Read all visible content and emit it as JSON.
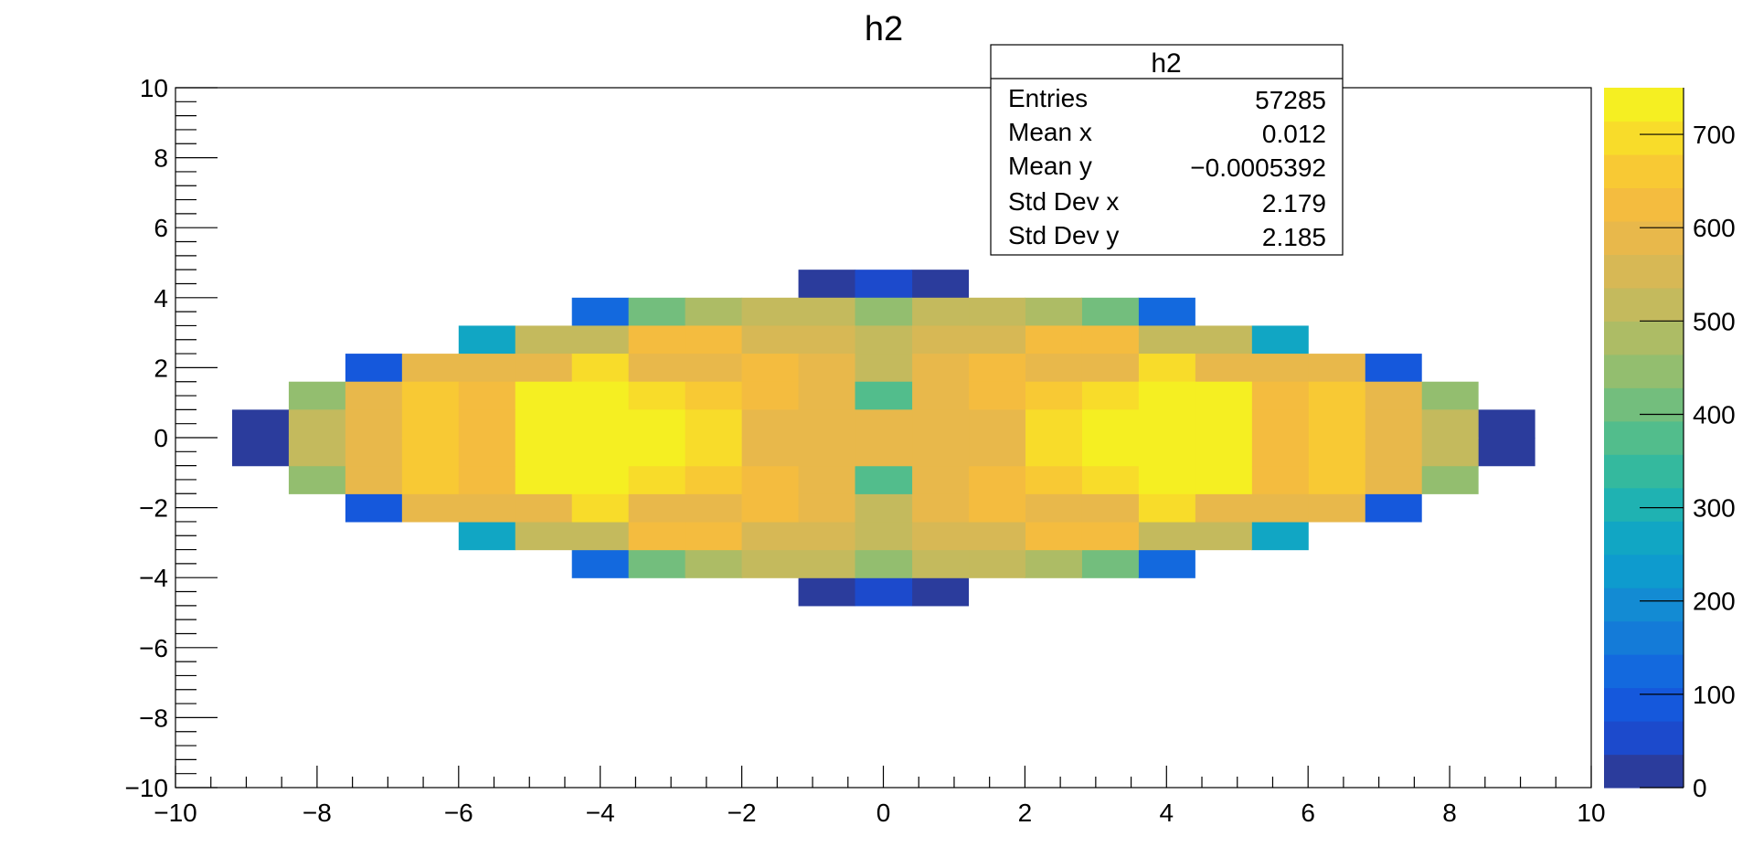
{
  "title": "h2",
  "stats_box": {
    "title": "h2",
    "rows": [
      {
        "label": "Entries",
        "value": "57285"
      },
      {
        "label": "Mean x",
        "value": "0.012"
      },
      {
        "label": "Mean y",
        "value": "−0.0005392"
      },
      {
        "label": "Std Dev x",
        "value": "2.179"
      },
      {
        "label": "Std Dev y",
        "value": "2.185"
      }
    ]
  },
  "chart_data": {
    "type": "heatmap",
    "title": "h2",
    "xlim": [
      -10,
      10
    ],
    "ylim": [
      -10,
      10
    ],
    "x_ticks": [
      "−10",
      "−8",
      "−6",
      "−4",
      "−2",
      "0",
      "2",
      "4",
      "6",
      "8",
      "10"
    ],
    "y_ticks": [
      "−10",
      "−8",
      "−6",
      "−4",
      "−2",
      "0",
      "2",
      "4",
      "6",
      "8",
      "10"
    ],
    "x_tick_values": [
      -10,
      -8,
      -6,
      -4,
      -2,
      0,
      2,
      4,
      6,
      8,
      10
    ],
    "y_tick_values": [
      -10,
      -8,
      -6,
      -4,
      -2,
      0,
      2,
      4,
      6,
      8,
      10
    ],
    "bins_x": 25,
    "bins_y": 25,
    "bin_width": 0.8,
    "z_range": [
      0,
      750
    ],
    "z_ticks": [
      "0",
      "100",
      "200",
      "300",
      "400",
      "500",
      "600",
      "700"
    ],
    "z_tick_values": [
      0,
      100,
      200,
      300,
      400,
      500,
      600,
      700
    ],
    "palette": [
      "#2b3c9c",
      "#1c4acc",
      "#1558dc",
      "#1369de",
      "#147bd8",
      "#138bd3",
      "#0e9bce",
      "#11a6c4",
      "#1fb2b2",
      "#34b99e",
      "#52bd8c",
      "#73be7d",
      "#93be6f",
      "#adbc65",
      "#c4ba5d",
      "#d7b855",
      "#e8b84b",
      "#f4bc3f",
      "#f8c934",
      "#f8dc2a",
      "#f5ef22"
    ],
    "grid": false,
    "legend": "color-scale-right",
    "cells": [
      {
        "x": -0.8,
        "y": 4.4,
        "z": 25
      },
      {
        "x": 0.0,
        "y": 4.4,
        "z": 70
      },
      {
        "x": 0.8,
        "y": 4.4,
        "z": 25
      },
      {
        "x": -4.0,
        "y": 3.6,
        "z": 110
      },
      {
        "x": -3.2,
        "y": 3.6,
        "z": 400
      },
      {
        "x": -2.4,
        "y": 3.6,
        "z": 470
      },
      {
        "x": -1.6,
        "y": 3.6,
        "z": 520
      },
      {
        "x": -0.8,
        "y": 3.6,
        "z": 520
      },
      {
        "x": 0.0,
        "y": 3.6,
        "z": 450
      },
      {
        "x": 0.8,
        "y": 3.6,
        "z": 110
      },
      {
        "x": -5.6,
        "y": 2.8,
        "z": 250
      },
      {
        "x": -4.8,
        "y": 2.8,
        "z": 530
      },
      {
        "x": -4.0,
        "y": 2.8,
        "z": 530
      },
      {
        "x": -3.2,
        "y": 2.8,
        "z": 610
      },
      {
        "x": -2.4,
        "y": 2.8,
        "z": 610
      },
      {
        "x": -1.6,
        "y": 2.8,
        "z": 570
      },
      {
        "x": -0.8,
        "y": 2.8,
        "z": 570
      },
      {
        "x": 0.0,
        "y": 2.8,
        "z": 530
      },
      {
        "x": 0.8,
        "y": 2.8,
        "z": 250
      },
      {
        "x": -7.2,
        "y": 2.0,
        "z": 90
      },
      {
        "x": -6.4,
        "y": 2.0,
        "z": 580
      },
      {
        "x": -5.6,
        "y": 2.0,
        "z": 580
      },
      {
        "x": -4.8,
        "y": 2.0,
        "z": 580
      },
      {
        "x": -4.0,
        "y": 2.0,
        "z": 690
      },
      {
        "x": -3.2,
        "y": 2.0,
        "z": 600
      },
      {
        "x": -2.4,
        "y": 2.0,
        "z": 600
      },
      {
        "x": -1.6,
        "y": 2.0,
        "z": 640
      },
      {
        "x": -0.8,
        "y": 2.0,
        "z": 580
      },
      {
        "x": 0.0,
        "y": 2.0,
        "z": 520
      },
      {
        "x": 0.8,
        "y": 2.0,
        "z": 90
      },
      {
        "x": -8.0,
        "y": 1.2,
        "z": 430
      },
      {
        "x": -7.2,
        "y": 1.2,
        "z": 580
      },
      {
        "x": -6.4,
        "y": 1.2,
        "z": 650
      },
      {
        "x": -5.6,
        "y": 1.2,
        "z": 610
      },
      {
        "x": -4.8,
        "y": 1.2,
        "z": 720
      },
      {
        "x": -4.0,
        "y": 1.2,
        "z": 750
      },
      {
        "x": -3.2,
        "y": 1.2,
        "z": 680
      },
      {
        "x": -2.4,
        "y": 1.2,
        "z": 650
      },
      {
        "x": -1.6,
        "y": 1.2,
        "z": 640
      },
      {
        "x": -0.8,
        "y": 1.2,
        "z": 580
      },
      {
        "x": 0.0,
        "y": 1.2,
        "z": 360
      },
      {
        "x": -8.8,
        "y": 0.4,
        "z": 30
      },
      {
        "x": -8.0,
        "y": 0.4,
        "z": 500
      },
      {
        "x": -7.2,
        "y": 0.4,
        "z": 580
      },
      {
        "x": -6.4,
        "y": 0.4,
        "z": 650
      },
      {
        "x": -5.6,
        "y": 0.4,
        "z": 640
      },
      {
        "x": -4.8,
        "y": 0.4,
        "z": 720
      },
      {
        "x": -4.0,
        "y": 0.4,
        "z": 750
      },
      {
        "x": -3.2,
        "y": 0.4,
        "z": 720
      },
      {
        "x": -2.4,
        "y": 0.4,
        "z": 680
      },
      {
        "x": -1.6,
        "y": 0.4,
        "z": 600
      },
      {
        "x": -0.8,
        "y": 0.4,
        "z": 580
      },
      {
        "x": 0.0,
        "y": 0.4,
        "z": 580
      },
      {
        "x": 0.8,
        "y": 0.4,
        "z": 30
      }
    ]
  }
}
